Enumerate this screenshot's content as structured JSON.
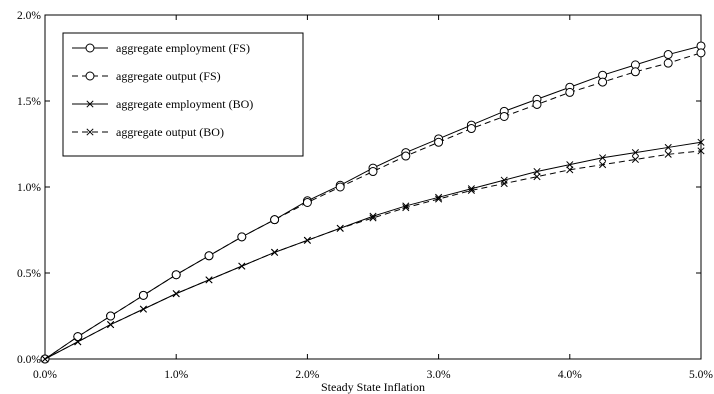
{
  "chart_data": {
    "type": "line",
    "title": "",
    "xlabel": "Steady State Inflation",
    "ylabel": "",
    "xlim": [
      0,
      5
    ],
    "ylim": [
      0,
      2
    ],
    "x_unit": "%",
    "y_unit": "%",
    "xticks": [
      "0.0%",
      "1.0%",
      "2.0%",
      "3.0%",
      "4.0%",
      "5.0%"
    ],
    "yticks": [
      "0.0%",
      "0.5%",
      "1.0%",
      "1.5%",
      "2.0%"
    ],
    "grid": false,
    "legend_position": "top-left",
    "x": [
      0,
      0.25,
      0.5,
      0.75,
      1.0,
      1.25,
      1.5,
      1.75,
      2.0,
      2.25,
      2.5,
      2.75,
      3.0,
      3.25,
      3.5,
      3.75,
      4.0,
      4.25,
      4.5,
      4.75,
      5.0
    ],
    "series": [
      {
        "name": "aggregate employment (FS)",
        "line": "solid",
        "marker": "circle",
        "values": [
          0,
          0.13,
          0.25,
          0.37,
          0.49,
          0.6,
          0.71,
          0.81,
          0.92,
          1.01,
          1.11,
          1.2,
          1.28,
          1.36,
          1.44,
          1.51,
          1.58,
          1.65,
          1.71,
          1.77,
          1.82
        ]
      },
      {
        "name": "aggregate output (FS)",
        "line": "dashed",
        "marker": "circle",
        "values": [
          0,
          0.13,
          0.25,
          0.37,
          0.49,
          0.6,
          0.71,
          0.81,
          0.91,
          1.0,
          1.09,
          1.18,
          1.26,
          1.34,
          1.41,
          1.48,
          1.55,
          1.61,
          1.67,
          1.72,
          1.78
        ]
      },
      {
        "name": "aggregate employment (BO)",
        "line": "solid",
        "marker": "x",
        "values": [
          0,
          0.1,
          0.2,
          0.29,
          0.38,
          0.46,
          0.54,
          0.62,
          0.69,
          0.76,
          0.83,
          0.89,
          0.94,
          0.99,
          1.04,
          1.09,
          1.13,
          1.17,
          1.2,
          1.23,
          1.26
        ]
      },
      {
        "name": "aggregate output (BO)",
        "line": "dashed",
        "marker": "x",
        "values": [
          0,
          0.1,
          0.2,
          0.29,
          0.38,
          0.46,
          0.54,
          0.62,
          0.69,
          0.76,
          0.82,
          0.88,
          0.93,
          0.98,
          1.02,
          1.06,
          1.1,
          1.13,
          1.16,
          1.19,
          1.21
        ]
      }
    ]
  }
}
